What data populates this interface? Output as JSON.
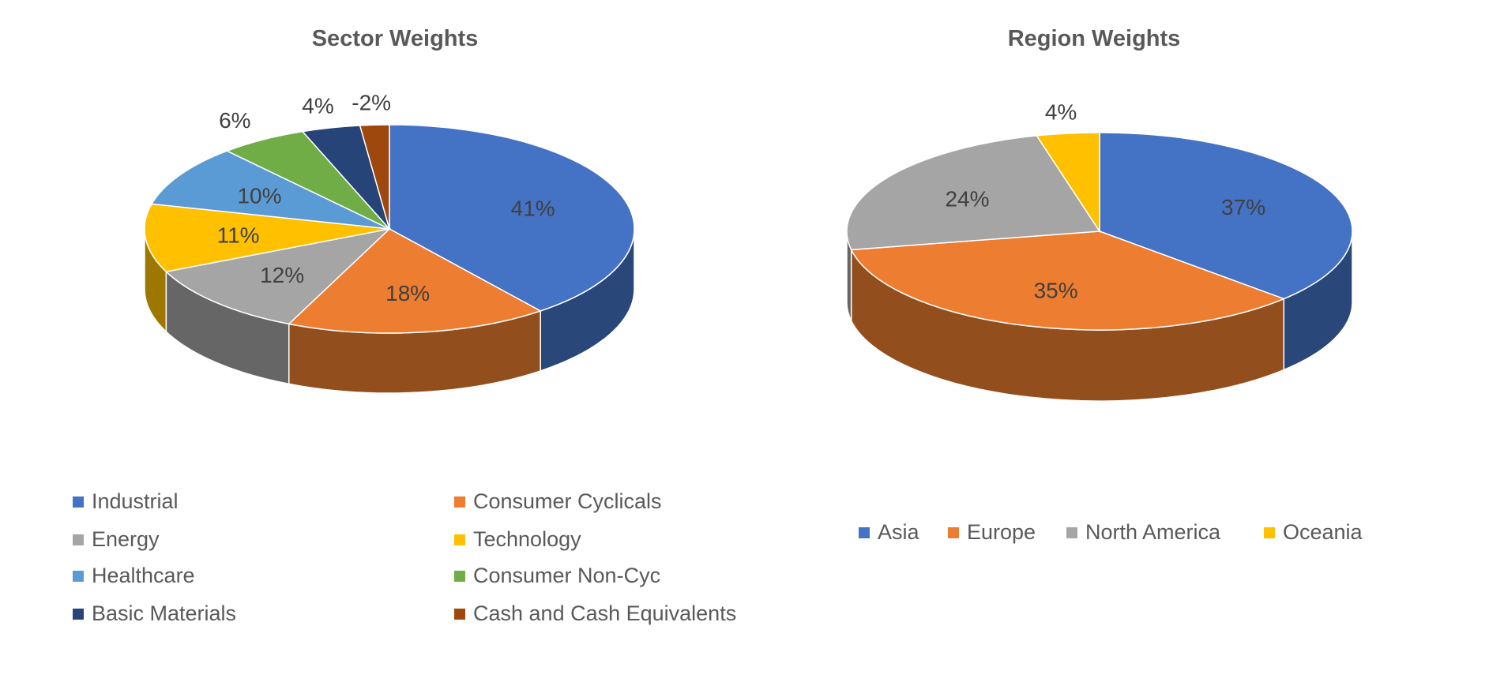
{
  "chart_data": [
    {
      "type": "pie",
      "title": "Sector Weights",
      "categories": [
        "Industrial",
        "Consumer Cyclicals",
        "Energy",
        "Technology",
        "Healthcare",
        "Consumer Non-Cyc",
        "Basic Materials",
        "Cash and Cash Equivalents"
      ],
      "values": [
        41,
        18,
        12,
        11,
        10,
        6,
        4,
        -2
      ],
      "labels": [
        "41%",
        "18%",
        "12%",
        "11%",
        "10%",
        "6%",
        "4%",
        "-2%"
      ],
      "colors": [
        "#4472C4",
        "#ED7D31",
        "#A5A5A5",
        "#FFC000",
        "#5B9BD5",
        "#70AD47",
        "#264478",
        "#9E480E"
      ],
      "legend_position": "bottom"
    },
    {
      "type": "pie",
      "title": "Region Weights",
      "categories": [
        "Asia",
        "Europe",
        "North America",
        "Oceania"
      ],
      "values": [
        37,
        35,
        24,
        4
      ],
      "labels": [
        "37%",
        "35%",
        "24%",
        "4%"
      ],
      "colors": [
        "#4472C4",
        "#ED7D31",
        "#A5A5A5",
        "#FFC000"
      ],
      "legend_position": "bottom"
    }
  ]
}
